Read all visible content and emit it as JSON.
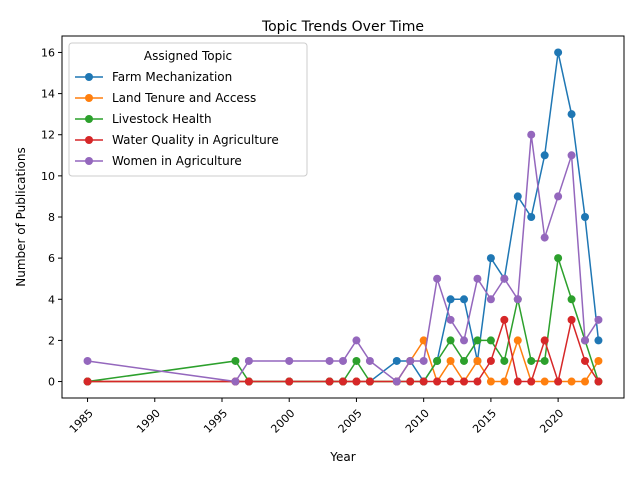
{
  "chart_data": {
    "type": "line",
    "title": "Topic Trends Over Time",
    "xlabel": "Year",
    "ylabel": "Number of Publications",
    "xlim": [
      1983.1,
      2024.9
    ],
    "ylim": [
      -0.8,
      16.8
    ],
    "xticks": [
      1985,
      1990,
      1995,
      2000,
      2005,
      2010,
      2015,
      2020
    ],
    "yticks": [
      0,
      2,
      4,
      6,
      8,
      10,
      12,
      14,
      16
    ],
    "grid": false,
    "legend": {
      "title": "Assigned Topic",
      "position": "upper-left"
    },
    "x": [
      1985,
      1996,
      1997,
      2000,
      2003,
      2004,
      2005,
      2006,
      2008,
      2009,
      2010,
      2011,
      2012,
      2013,
      2014,
      2015,
      2016,
      2017,
      2018,
      2019,
      2020,
      2021,
      2022,
      2023
    ],
    "series": [
      {
        "name": "Farm Mechanization",
        "color": "#1f77b4",
        "values": [
          0,
          0,
          0,
          0,
          0,
          0,
          0,
          0,
          1,
          1,
          0,
          1,
          4,
          4,
          1,
          6,
          5,
          9,
          8,
          11,
          16,
          13,
          8,
          2
        ]
      },
      {
        "name": "Land Tenure and Access",
        "color": "#ff7f0e",
        "values": [
          0,
          0,
          0,
          0,
          0,
          0,
          0,
          0,
          0,
          1,
          2,
          0,
          1,
          0,
          1,
          0,
          0,
          2,
          0,
          0,
          0,
          0,
          0,
          1
        ]
      },
      {
        "name": "Livestock Health",
        "color": "#2ca02c",
        "values": [
          0,
          1,
          0,
          0,
          0,
          0,
          1,
          0,
          0,
          0,
          0,
          1,
          2,
          1,
          2,
          2,
          1,
          4,
          1,
          1,
          6,
          4,
          2,
          0
        ]
      },
      {
        "name": "Water Quality in Agriculture",
        "color": "#d62728",
        "values": [
          0,
          0,
          0,
          0,
          0,
          0,
          0,
          0,
          0,
          0,
          0,
          0,
          0,
          0,
          0,
          1,
          3,
          0,
          0,
          2,
          0,
          3,
          1,
          0
        ]
      },
      {
        "name": "Women in Agriculture",
        "color": "#9467bd",
        "values": [
          1,
          0,
          1,
          1,
          1,
          1,
          2,
          1,
          0,
          1,
          1,
          5,
          3,
          2,
          5,
          4,
          5,
          4,
          12,
          7,
          9,
          11,
          2,
          3
        ]
      }
    ]
  }
}
